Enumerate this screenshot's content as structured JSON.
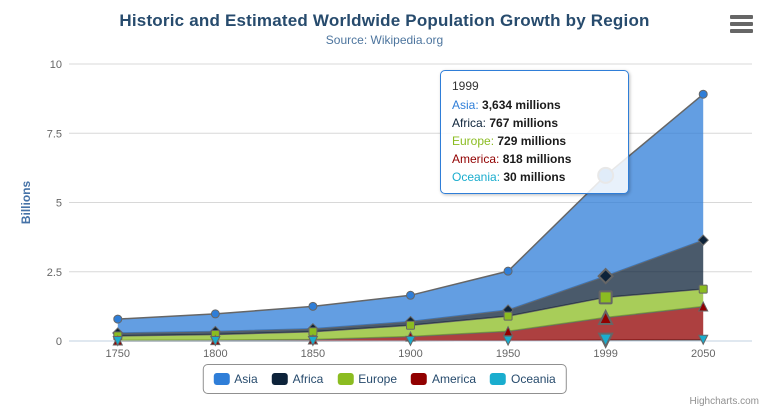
{
  "title": "Historic and Estimated Worldwide Population Growth by Region",
  "subtitle": "Source: Wikipedia.org",
  "credits": "Highcharts.com",
  "icons": {
    "export_menu": "hamburger-menu"
  },
  "chart_data": {
    "type": "area",
    "stacking": "normal",
    "title": "Historic and Estimated Worldwide Population Growth by Region",
    "subtitle": "Source: Wikipedia.org",
    "xlabel": "",
    "ylabel": "Billions",
    "units": "millions",
    "ylim": [
      0,
      10
    ],
    "yticks": [
      0,
      2.5,
      5,
      7.5,
      10
    ],
    "ytick_labels": [
      "0",
      "2.5",
      "5",
      "7.5",
      "10"
    ],
    "categories": [
      "1750",
      "1800",
      "1850",
      "1900",
      "1950",
      "1999",
      "2050"
    ],
    "grid": true,
    "legend_position": "bottom",
    "hover_category": "1999",
    "line_color": "#666666",
    "grid_color": "#d8d8d8",
    "axis_line_color": "#c0d0e0",
    "tick_label_color": "#666666",
    "axis_title_color": "#4572a7",
    "series": [
      {
        "name": "Asia",
        "color": "#2f7ed8",
        "marker": "circle",
        "values": [
          502,
          635,
          809,
          947,
          1402,
          3634,
          5268
        ]
      },
      {
        "name": "Africa",
        "color": "#0d233a",
        "marker": "diamond",
        "values": [
          106,
          107,
          111,
          133,
          221,
          767,
          1766
        ]
      },
      {
        "name": "Europe",
        "color": "#8bbc21",
        "marker": "square",
        "values": [
          163,
          203,
          276,
          408,
          547,
          729,
          628
        ]
      },
      {
        "name": "America",
        "color": "#910000",
        "marker": "triangle",
        "values": [
          18,
          31,
          54,
          156,
          339,
          818,
          1201
        ]
      },
      {
        "name": "Oceania",
        "color": "#1aadce",
        "marker": "triangle-down",
        "values": [
          2,
          2,
          2,
          6,
          13,
          30,
          46
        ]
      }
    ],
    "stack_order_bottom_to_top": [
      "Oceania",
      "America",
      "Europe",
      "Africa",
      "Asia"
    ]
  },
  "tooltip": {
    "header": "1999",
    "border_color": "#2f7ed8",
    "rows": [
      {
        "label": "Asia:",
        "value": "3,634 millions",
        "color": "#2f7ed8"
      },
      {
        "label": "Africa:",
        "value": "767 millions",
        "color": "#0d233a"
      },
      {
        "label": "Europe:",
        "value": "729 millions",
        "color": "#8bbc21"
      },
      {
        "label": "America:",
        "value": "818 millions",
        "color": "#910000"
      },
      {
        "label": "Oceania:",
        "value": "30 millions",
        "color": "#1aadce"
      }
    ]
  },
  "legend": {
    "items": [
      "Asia",
      "Africa",
      "Europe",
      "America",
      "Oceania"
    ]
  }
}
